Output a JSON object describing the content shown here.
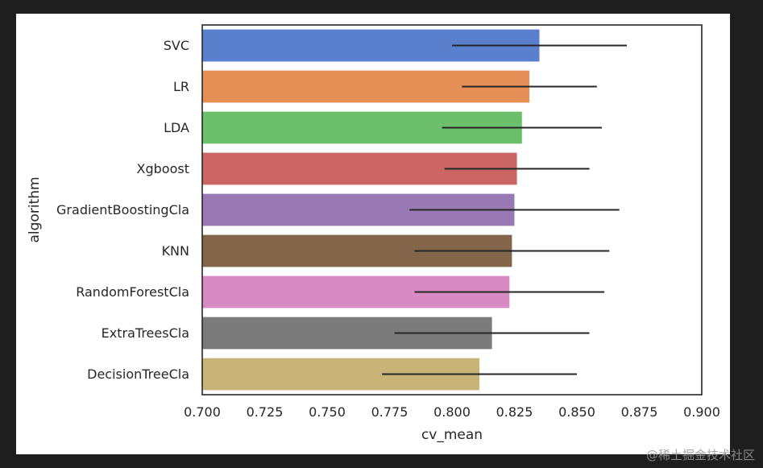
{
  "chart_data": {
    "type": "bar",
    "orientation": "horizontal",
    "title": "",
    "xlabel": "cv_mean",
    "ylabel": "algorithm",
    "xlim": [
      0.7,
      0.9
    ],
    "xticks": [
      "0.700",
      "0.725",
      "0.750",
      "0.775",
      "0.800",
      "0.825",
      "0.850",
      "0.875",
      "0.900"
    ],
    "xtick_values": [
      0.7,
      0.725,
      0.75,
      0.775,
      0.8,
      0.825,
      0.85,
      0.875,
      0.9
    ],
    "grid": false,
    "categories": [
      "SVC",
      "LR",
      "LDA",
      "Xgboost",
      "GradientBoostingCla",
      "KNN",
      "RandomForestCla",
      "ExtraTreesCla",
      "DecisionTreeCla"
    ],
    "values": [
      0.835,
      0.831,
      0.828,
      0.826,
      0.825,
      0.824,
      0.823,
      0.816,
      0.811
    ],
    "errors": [
      0.035,
      0.027,
      0.032,
      0.029,
      0.042,
      0.039,
      0.038,
      0.039,
      0.039
    ],
    "colors": [
      "#5a7fcc",
      "#e58e55",
      "#6cc06c",
      "#cc6665",
      "#9879b3",
      "#83654a",
      "#d88bc3",
      "#7b7b7b",
      "#c9b478"
    ]
  },
  "watermark": "@稀土掘金技术社区"
}
